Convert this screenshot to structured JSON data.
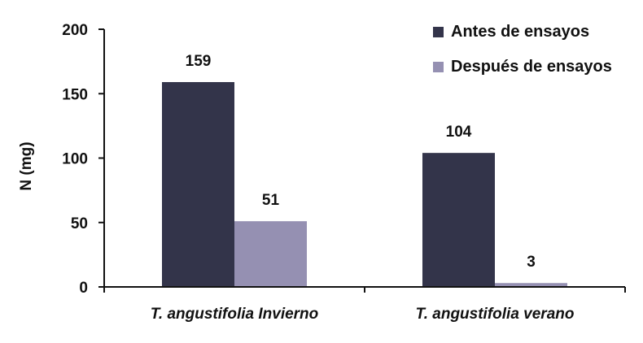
{
  "chart_data": {
    "type": "bar",
    "categories": [
      "T. angustifolia Invierno",
      "T. angustifolia verano"
    ],
    "series": [
      {
        "name": "Antes de ensayos",
        "values": [
          159,
          104
        ],
        "color": "#33344a"
      },
      {
        "name": "Después de ensayos",
        "values": [
          51,
          3
        ],
        "color": "#9590b2"
      }
    ],
    "ylabel": "N (mg)",
    "xlabel": "",
    "ylim": [
      0,
      200
    ],
    "yticks": [
      0,
      50,
      100,
      150,
      200
    ],
    "grid": false,
    "legend_position": "top-right",
    "data_labels": [
      "159",
      "51",
      "104",
      "3"
    ]
  }
}
